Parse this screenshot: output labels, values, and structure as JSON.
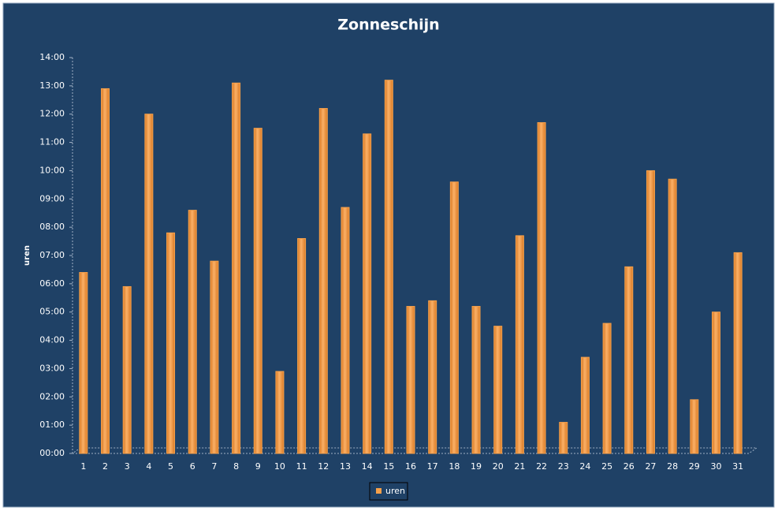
{
  "chart_data": {
    "type": "bar",
    "title": "Zonneschijn",
    "y_label": "uren",
    "categories": [
      "1",
      "2",
      "3",
      "4",
      "5",
      "6",
      "7",
      "8",
      "9",
      "10",
      "11",
      "12",
      "13",
      "14",
      "15",
      "16",
      "17",
      "18",
      "19",
      "20",
      "21",
      "22",
      "23",
      "24",
      "25",
      "26",
      "27",
      "28",
      "29",
      "30",
      "31"
    ],
    "series": [
      {
        "name": "uren",
        "color": "#f5a04a",
        "values": [
          6.4,
          12.9,
          5.9,
          12.0,
          7.8,
          8.6,
          6.8,
          13.1,
          11.5,
          2.9,
          7.6,
          12.2,
          8.7,
          11.3,
          13.2,
          5.2,
          5.4,
          9.6,
          5.2,
          4.5,
          7.7,
          11.7,
          1.1,
          3.4,
          4.6,
          6.6,
          10.0,
          9.7,
          1.9,
          5.0,
          7.1
        ]
      }
    ],
    "ylim": [
      0,
      14
    ],
    "yticks": [
      {
        "value": 0,
        "label": "00:00"
      },
      {
        "value": 1,
        "label": "01:00"
      },
      {
        "value": 2,
        "label": "02:00"
      },
      {
        "value": 3,
        "label": "03:00"
      },
      {
        "value": 4,
        "label": "04:00"
      },
      {
        "value": 5,
        "label": "05:00"
      },
      {
        "value": 6,
        "label": "06:00"
      },
      {
        "value": 7,
        "label": "07:00"
      },
      {
        "value": 8,
        "label": "08:00"
      },
      {
        "value": 9,
        "label": "09:00"
      },
      {
        "value": 10,
        "label": "10:00"
      },
      {
        "value": 11,
        "label": "11:00"
      },
      {
        "value": 12,
        "label": "12:00"
      },
      {
        "value": 13,
        "label": "13:00"
      },
      {
        "value": 14,
        "label": "14:00"
      }
    ],
    "grid": false,
    "legend": "bottom"
  }
}
